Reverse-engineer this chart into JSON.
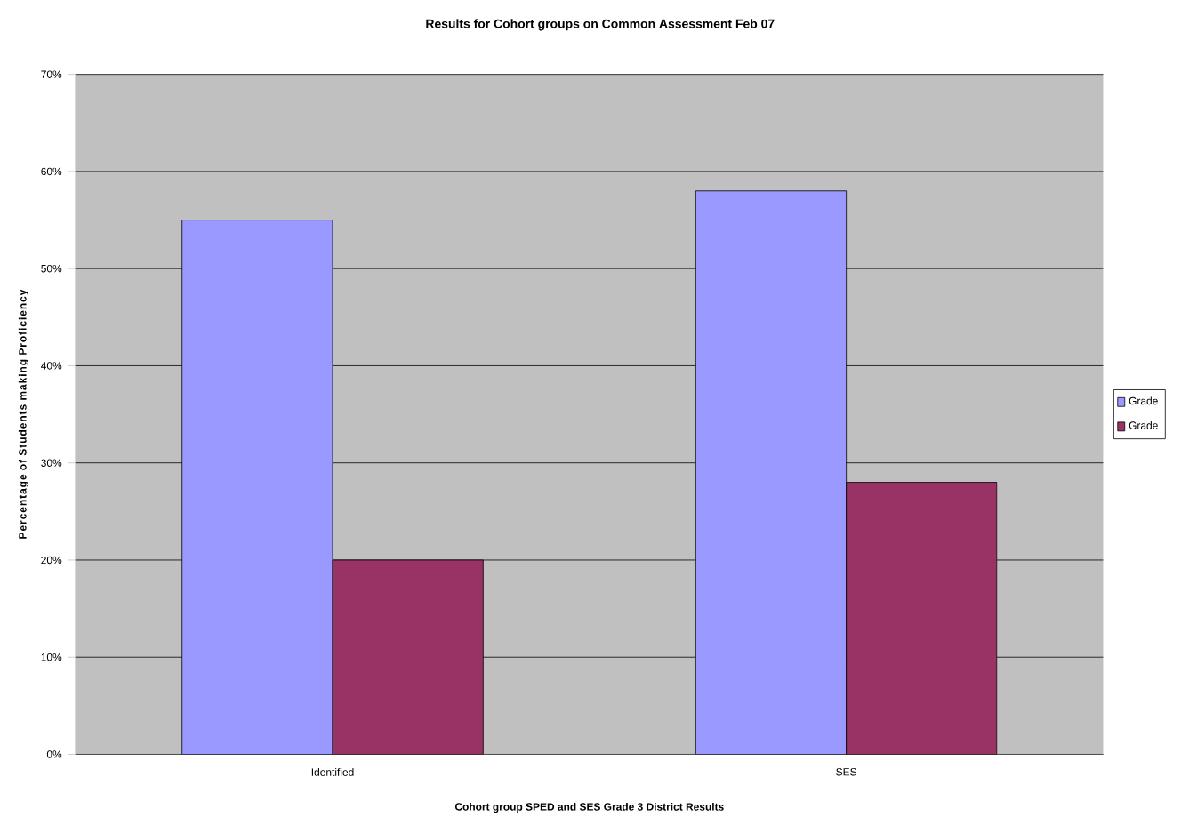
{
  "chart_data": {
    "type": "bar",
    "title": "Results for Cohort groups on Common Assessment Feb 07",
    "xlabel": "Cohort group SPED and SES Grade 3 District Results",
    "ylabel": "Percentage of Students making Proficiency",
    "categories": [
      "Identified",
      "SES"
    ],
    "series": [
      {
        "name": "Grade",
        "color": "#9999ff",
        "values": [
          55,
          58
        ]
      },
      {
        "name": "Grade",
        "color": "#993366",
        "values": [
          20,
          28
        ]
      }
    ],
    "ylim": [
      0,
      70
    ],
    "yticks": [
      {
        "value": 0,
        "label": "0%"
      },
      {
        "value": 10,
        "label": "10%"
      },
      {
        "value": 20,
        "label": "20%"
      },
      {
        "value": 30,
        "label": "30%"
      },
      {
        "value": 40,
        "label": "40%"
      },
      {
        "value": 50,
        "label": "50%"
      },
      {
        "value": 60,
        "label": "60%"
      },
      {
        "value": 70,
        "label": "70%"
      }
    ],
    "grid": "y",
    "legend": "right"
  }
}
